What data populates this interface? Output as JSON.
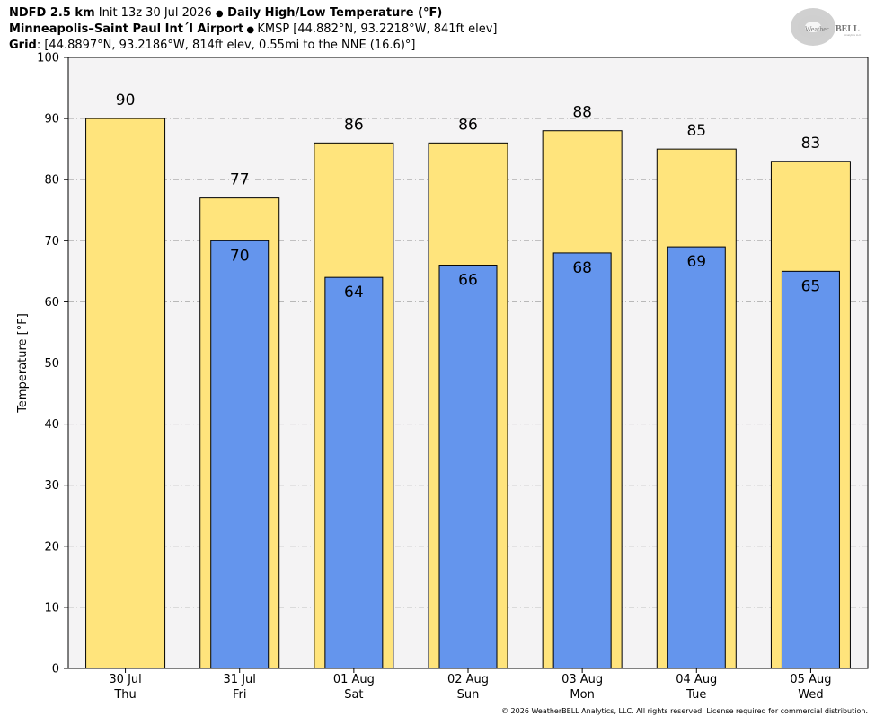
{
  "header": {
    "line1_bold_a": "NDFD 2.5 km",
    "line1_text_a": " Init 13z 30 Jul 2026 ",
    "line1_bullet": "●",
    "line1_bold_b": " Daily High/Low Temperature (°F)",
    "line2_bold": "Minneapolis–Saint Paul Int´l Airport",
    "line2_bullet": " ● ",
    "line2_text": "KMSP [44.882°N, 93.2218°W, 841ft elev]",
    "line3_bold": "Grid",
    "line3_text": ": [44.8897°N, 93.2186°W, 814ft elev, 0.55mi to the NNE (16.6)°]"
  },
  "logo": {
    "text_a": "Weather",
    "text_b": "BELL",
    "subtext": "Analytics LLC"
  },
  "copyright": "© 2026 WeatherBELL Analytics, LLC. All rights reserved. License required for commercial distribution.",
  "colors": {
    "high_fill": "#ffe47c",
    "low_fill": "#6495ed",
    "plot_bg": "#f4f3f4",
    "grid": "#b0b0b0"
  },
  "chart_data": {
    "type": "bar",
    "ylabel": "Temperature [°F]",
    "ylim": [
      0,
      100
    ],
    "yticks": [
      0,
      10,
      20,
      30,
      40,
      50,
      60,
      70,
      80,
      90,
      100
    ],
    "grid": true,
    "categories": [
      [
        "30 Jul",
        "Thu"
      ],
      [
        "31 Jul",
        "Fri"
      ],
      [
        "01 Aug",
        "Sat"
      ],
      [
        "02 Aug",
        "Sun"
      ],
      [
        "03 Aug",
        "Mon"
      ],
      [
        "04 Aug",
        "Tue"
      ],
      [
        "05 Aug",
        "Wed"
      ]
    ],
    "series": [
      {
        "values": [
          90,
          77,
          86,
          86,
          88,
          85,
          83
        ]
      },
      {
        "values": [
          null,
          70,
          64,
          66,
          68,
          69,
          65
        ]
      }
    ]
  }
}
